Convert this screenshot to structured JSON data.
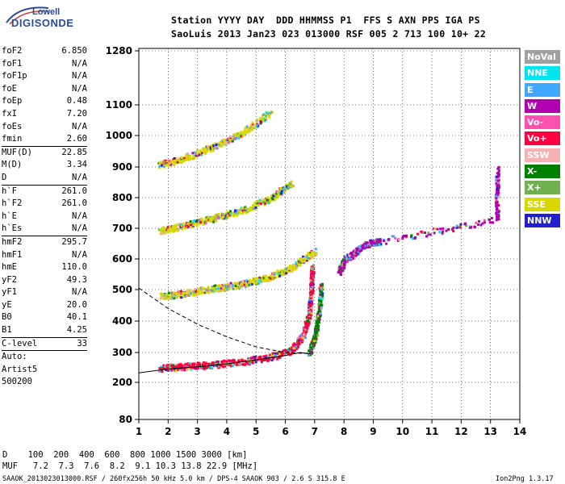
{
  "logo": {
    "top": "Lowell",
    "main": "DIGISONDE"
  },
  "header": {
    "row1": "Station YYYY DAY  DDD HHMMSS P1  FFS S AXN PPS IGA PS",
    "row2": "SaoLuis 2013 Jan23 023 013000 RSF 005 2 713 100 10+ 22"
  },
  "params": {
    "g1": [
      {
        "name": "foF2",
        "value": "6.850"
      },
      {
        "name": "foF1",
        "value": "N/A"
      },
      {
        "name": "foF1p",
        "value": "N/A"
      },
      {
        "name": "foE",
        "value": "N/A"
      },
      {
        "name": "foEp",
        "value": "0.48"
      },
      {
        "name": "fxI",
        "value": "7.20"
      },
      {
        "name": "foEs",
        "value": "N/A"
      },
      {
        "name": "fmin",
        "value": "2.60"
      }
    ],
    "g2": [
      {
        "name": "MUF(D)",
        "value": "22.85"
      },
      {
        "name": "M(D)",
        "value": "3.34"
      },
      {
        "name": "D",
        "value": "N/A"
      }
    ],
    "g3": [
      {
        "name": "h`F",
        "value": "261.0"
      },
      {
        "name": "h`F2",
        "value": "261.0"
      },
      {
        "name": "h`E",
        "value": "N/A"
      },
      {
        "name": "h`Es",
        "value": "N/A"
      }
    ],
    "g4": [
      {
        "name": "hmF2",
        "value": "295.7"
      },
      {
        "name": "hmF1",
        "value": "N/A"
      },
      {
        "name": "hmE",
        "value": "110.0"
      },
      {
        "name": "yF2",
        "value": "49.3"
      },
      {
        "name": "yF1",
        "value": "N/A"
      },
      {
        "name": "yE",
        "value": "20.0"
      },
      {
        "name": "B0",
        "value": "40.1"
      },
      {
        "name": "B1",
        "value": "4.25"
      }
    ],
    "g5": [
      {
        "name": "C-level",
        "value": "33"
      }
    ],
    "g6": [
      "Auto:",
      "Artist5",
      "500200"
    ]
  },
  "legend": [
    {
      "label": "NoVal",
      "color": "#a0a0a0"
    },
    {
      "label": "NNE",
      "color": "#00e4f0"
    },
    {
      "label": "E",
      "color": "#40a8ff"
    },
    {
      "label": "W",
      "color": "#b000b0"
    },
    {
      "label": "Vo-",
      "color": "#ff50b0"
    },
    {
      "label": "Vo+",
      "color": "#ff0040"
    },
    {
      "label": "SSW",
      "color": "#f8b0b0"
    },
    {
      "label": "X-",
      "color": "#008000"
    },
    {
      "label": "X+",
      "color": "#70b050"
    },
    {
      "label": "SSE",
      "color": "#d8d800"
    },
    {
      "label": "NNW",
      "color": "#2020d0"
    }
  ],
  "bottom": {
    "d_row": "D    100  200  400  600  800 1000 1500 3000 [km]",
    "muf_row": "MUF   7.2  7.3  7.6  8.2  9.1 10.3 13.8 22.9 [MHz]",
    "footer_left": "SAAOK_2013023013000.RSF / 260fx256h 50 kHz 5.0 km / DPS-4 SAAOK 903 / 2.6 S 315.8 E",
    "footer_right": "Ion2Png 1.3.17"
  },
  "chart_data": {
    "type": "scatter",
    "xlim": [
      1,
      14
    ],
    "ylim_virtual_height_km": [
      80,
      1280
    ],
    "x_ticks": [
      1,
      2,
      3,
      4,
      5,
      6,
      7,
      8,
      9,
      10,
      11,
      12,
      13,
      14
    ],
    "y_ticks": [
      80,
      200,
      300,
      400,
      500,
      600,
      700,
      800,
      900,
      1000,
      1100,
      1280
    ],
    "grid": true,
    "legend_placement": "right",
    "traces": [
      {
        "name": "F-layer o-trace",
        "points": [
          [
            1.7,
            250
          ],
          [
            2.5,
            255
          ],
          [
            3.5,
            262
          ],
          [
            4.5,
            272
          ],
          [
            5.5,
            288
          ],
          [
            6.2,
            310
          ],
          [
            6.6,
            360
          ],
          [
            6.8,
            430
          ],
          [
            6.85,
            500
          ],
          [
            6.9,
            580
          ]
        ],
        "color": "#ff0040"
      },
      {
        "name": "F-layer x-trace",
        "points": [
          [
            6.8,
            300
          ],
          [
            7.0,
            360
          ],
          [
            7.15,
            450
          ],
          [
            7.2,
            520
          ]
        ],
        "color": "#008000"
      },
      {
        "name": "2nd hop",
        "points": [
          [
            1.7,
            480
          ],
          [
            2.5,
            490
          ],
          [
            3.5,
            505
          ],
          [
            4.5,
            520
          ],
          [
            5.5,
            545
          ],
          [
            6.3,
            580
          ],
          [
            7.0,
            630
          ]
        ],
        "color": "#d8d800"
      },
      {
        "name": "3rd hop",
        "points": [
          [
            1.7,
            695
          ],
          [
            2.5,
            710
          ],
          [
            3.5,
            735
          ],
          [
            4.5,
            760
          ],
          [
            5.5,
            800
          ],
          [
            6.2,
            850
          ]
        ],
        "color": "#d8d800"
      },
      {
        "name": "4th hop",
        "points": [
          [
            1.7,
            910
          ],
          [
            2.5,
            930
          ],
          [
            3.5,
            965
          ],
          [
            4.5,
            1010
          ],
          [
            5.5,
            1080
          ]
        ],
        "color": "#d8d800"
      },
      {
        "name": "far field",
        "points": [
          [
            7.8,
            560
          ],
          [
            8.0,
            600
          ],
          [
            8.3,
            620
          ],
          [
            8.7,
            650
          ],
          [
            9.2,
            660
          ],
          [
            13.2,
            730
          ],
          [
            13.2,
            900
          ]
        ],
        "color": "#b000b0"
      }
    ],
    "profile_curve": [
      [
        1,
        232
      ],
      [
        2,
        245
      ],
      [
        3,
        252
      ],
      [
        4,
        262
      ],
      [
        5,
        275
      ],
      [
        6,
        290
      ],
      [
        6.5,
        300
      ],
      [
        6.85,
        296
      ]
    ],
    "dashed_curve": [
      [
        1,
        505
      ],
      [
        2,
        440
      ],
      [
        3,
        390
      ],
      [
        4,
        350
      ],
      [
        5,
        318
      ],
      [
        6,
        300
      ],
      [
        6.85,
        296
      ]
    ]
  }
}
